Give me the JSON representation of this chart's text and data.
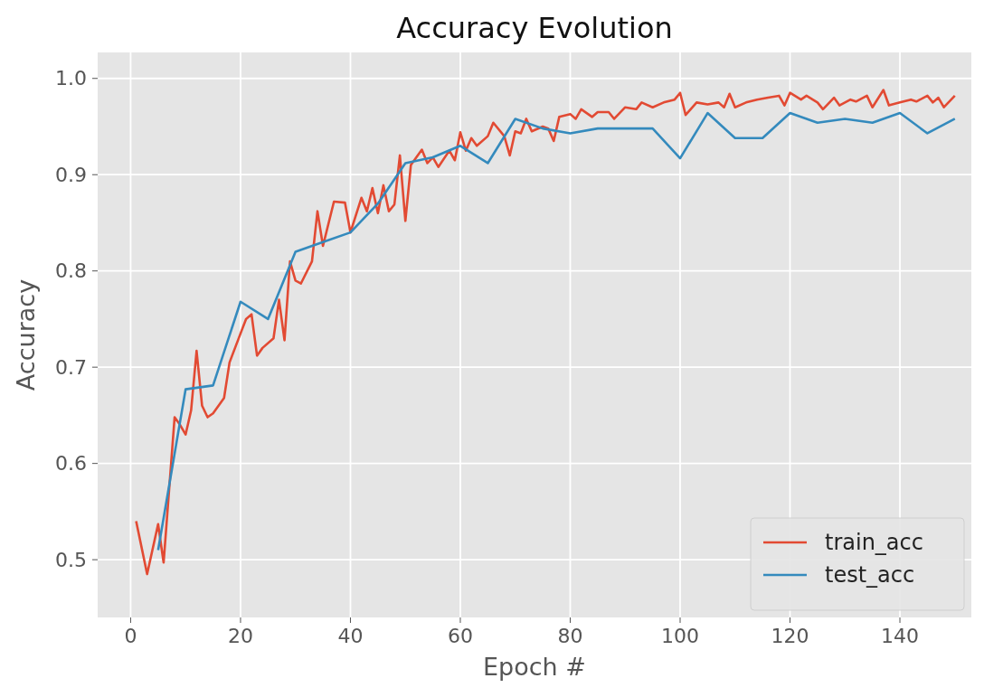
{
  "chart_data": {
    "type": "line",
    "title": "Accuracy Evolution",
    "xlabel": "Epoch #",
    "ylabel": "Accuracy",
    "xlim": [
      -6,
      153
    ],
    "xticks": [
      0,
      20,
      40,
      60,
      80,
      100,
      120,
      140
    ],
    "ylim": [
      0.44,
      1.027
    ],
    "yticks": [
      {
        "value": 0.5,
        "label": "0.5"
      },
      {
        "value": 0.6,
        "label": "0.6"
      },
      {
        "value": 0.7,
        "label": "0.7"
      },
      {
        "value": 0.8,
        "label": "0.8"
      },
      {
        "value": 0.9,
        "label": "0.9"
      },
      {
        "value": 1.0,
        "label": "1.0"
      }
    ],
    "grid": true,
    "legend": "bottom right",
    "series": [
      {
        "name": "train_acc",
        "color": "#e24a33",
        "x": [
          1,
          3,
          5,
          6,
          8,
          9,
          10,
          11,
          12,
          13,
          14,
          15,
          17,
          18,
          20,
          21,
          22,
          23,
          24,
          26,
          27,
          28,
          29,
          30,
          31,
          33,
          34,
          35,
          37,
          39,
          40,
          42,
          43,
          44,
          45,
          46,
          47,
          48,
          49,
          50,
          51,
          53,
          54,
          55,
          56,
          58,
          59,
          60,
          61,
          62,
          63,
          65,
          66,
          68,
          69,
          70,
          71,
          72,
          73,
          75,
          76,
          77,
          78,
          80,
          81,
          82,
          84,
          85,
          87,
          88,
          90,
          92,
          93,
          95,
          97,
          99,
          100,
          101,
          103,
          105,
          107,
          108,
          109,
          110,
          112,
          114,
          116,
          118,
          119,
          120,
          122,
          123,
          125,
          126,
          128,
          129,
          131,
          132,
          134,
          135,
          137,
          138,
          140,
          142,
          143,
          145,
          146,
          147,
          148,
          150
        ],
        "values": [
          0.54,
          0.485,
          0.537,
          0.497,
          0.648,
          0.64,
          0.63,
          0.655,
          0.717,
          0.66,
          0.648,
          0.652,
          0.668,
          0.705,
          0.735,
          0.75,
          0.755,
          0.712,
          0.72,
          0.73,
          0.77,
          0.728,
          0.81,
          0.79,
          0.787,
          0.81,
          0.862,
          0.826,
          0.872,
          0.871,
          0.84,
          0.876,
          0.862,
          0.886,
          0.86,
          0.889,
          0.862,
          0.869,
          0.92,
          0.852,
          0.91,
          0.926,
          0.912,
          0.918,
          0.908,
          0.925,
          0.915,
          0.944,
          0.925,
          0.938,
          0.93,
          0.94,
          0.954,
          0.94,
          0.92,
          0.945,
          0.943,
          0.958,
          0.945,
          0.95,
          0.948,
          0.935,
          0.96,
          0.963,
          0.958,
          0.968,
          0.96,
          0.965,
          0.965,
          0.958,
          0.97,
          0.968,
          0.975,
          0.97,
          0.975,
          0.978,
          0.985,
          0.962,
          0.975,
          0.973,
          0.975,
          0.97,
          0.984,
          0.97,
          0.975,
          0.978,
          0.98,
          0.982,
          0.972,
          0.985,
          0.978,
          0.982,
          0.975,
          0.968,
          0.98,
          0.972,
          0.978,
          0.976,
          0.982,
          0.97,
          0.988,
          0.972,
          0.975,
          0.978,
          0.976,
          0.982,
          0.975,
          0.98,
          0.97,
          0.982
        ]
      },
      {
        "name": "test_acc",
        "color": "#348abd",
        "x": [
          5,
          10,
          15,
          20,
          25,
          30,
          35,
          40,
          45,
          50,
          55,
          60,
          65,
          70,
          75,
          80,
          85,
          90,
          95,
          100,
          105,
          110,
          115,
          120,
          125,
          130,
          135,
          140,
          145,
          150
        ],
        "values": [
          0.51,
          0.677,
          0.681,
          0.768,
          0.75,
          0.82,
          0.83,
          0.84,
          0.87,
          0.912,
          0.918,
          0.93,
          0.912,
          0.958,
          0.948,
          0.943,
          0.948,
          0.948,
          0.948,
          0.917,
          0.964,
          0.938,
          0.938,
          0.964,
          0.954,
          0.958,
          0.954,
          0.964,
          0.943,
          0.958
        ]
      }
    ]
  }
}
